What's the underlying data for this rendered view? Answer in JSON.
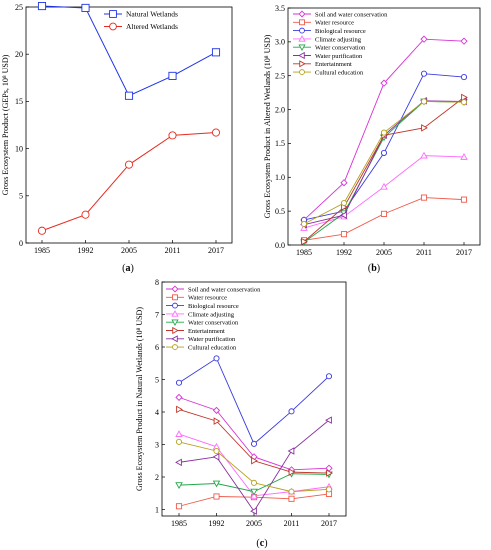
{
  "chart_data": [
    {
      "panel": "(a)",
      "type": "line",
      "x": [
        "1985",
        "1992",
        "2005",
        "2011",
        "2017"
      ],
      "ylabel": "Gross Ecosystem Product (GEPs, 10⁸ USD)",
      "ylim": [
        0,
        25
      ],
      "yticks": [
        0,
        5,
        10,
        15,
        20,
        25
      ],
      "legend_position": "top-right",
      "series": [
        {
          "name": "Natural Wetlands",
          "color": "#1f33e6",
          "marker": "square",
          "values": [
            25.1,
            24.9,
            15.6,
            17.7,
            20.2
          ]
        },
        {
          "name": "Altered Wetlands",
          "color": "#e62a1f",
          "marker": "circle",
          "values": [
            1.3,
            3.0,
            8.3,
            11.4,
            11.7
          ]
        }
      ]
    },
    {
      "panel": "(b)",
      "type": "line",
      "x": [
        "1985",
        "1992",
        "2005",
        "2011",
        "2017"
      ],
      "ylabel": "Gross Ecosystem Product  in  Altered Wetlands (10⁸ USD)",
      "ylim": [
        0,
        3.5
      ],
      "yticks": [
        0.0,
        0.5,
        1.0,
        1.5,
        2.0,
        2.5,
        3.0,
        3.5
      ],
      "legend_position": "top-left",
      "series": [
        {
          "name": "Soil and water  conservation",
          "color": "#d633d6",
          "marker": "diamond",
          "values": [
            0.37,
            0.92,
            2.39,
            3.04,
            3.01
          ]
        },
        {
          "name": "Water resource",
          "color": "#ee5a4a",
          "marker": "square",
          "values": [
            0.07,
            0.16,
            0.46,
            0.7,
            0.67
          ]
        },
        {
          "name": "Biological resource",
          "color": "#3a3ae0",
          "marker": "circle",
          "values": [
            0.37,
            0.5,
            1.36,
            2.53,
            2.48
          ]
        },
        {
          "name": "Climate adjusting",
          "color": "#ff6bff",
          "marker": "triangle-up",
          "values": [
            0.25,
            0.42,
            0.86,
            1.32,
            1.3
          ]
        },
        {
          "name": "Water conservation",
          "color": "#22a84a",
          "marker": "triangle-down",
          "values": [
            0.04,
            0.47,
            1.59,
            2.12,
            2.11
          ]
        },
        {
          "name": "Water purification",
          "color": "#8a2f9e",
          "marker": "triangle-left",
          "values": [
            0.3,
            0.44,
            1.62,
            2.13,
            2.12
          ]
        },
        {
          "name": "Entertainment",
          "color": "#c0342a",
          "marker": "triangle-right",
          "values": [
            0.05,
            0.56,
            1.62,
            1.73,
            2.18
          ]
        },
        {
          "name": "Cultural education",
          "color": "#b5a21e",
          "marker": "circle",
          "values": [
            0.31,
            0.62,
            1.66,
            2.12,
            2.11
          ]
        }
      ]
    },
    {
      "panel": "(c)",
      "type": "line",
      "x": [
        "1985",
        "1992",
        "2005",
        "2011",
        "2017"
      ],
      "ylabel": "Gross Ecosystem Product in Natural Wetlands (10⁸ USD)",
      "ylim": [
        0.8,
        8
      ],
      "yticks": [
        1,
        2,
        3,
        4,
        5,
        6,
        7,
        8
      ],
      "legend_position": "top-left",
      "series": [
        {
          "name": "Soil and water  conservation",
          "color": "#d633d6",
          "marker": "diamond",
          "values": [
            4.45,
            4.05,
            2.62,
            2.22,
            2.27
          ]
        },
        {
          "name": "Water resource",
          "color": "#ee5a4a",
          "marker": "square",
          "values": [
            1.1,
            1.4,
            1.38,
            1.33,
            1.48
          ]
        },
        {
          "name": "Biological resource",
          "color": "#3a3ae0",
          "marker": "circle",
          "values": [
            4.9,
            5.65,
            3.02,
            4.02,
            5.1
          ]
        },
        {
          "name": "Climate adjusting",
          "color": "#ff6bff",
          "marker": "triangle-up",
          "values": [
            3.32,
            2.93,
            1.42,
            1.55,
            1.7
          ]
        },
        {
          "name": "Water conservation",
          "color": "#22a84a",
          "marker": "triangle-down",
          "values": [
            1.75,
            1.8,
            1.55,
            2.1,
            2.08
          ]
        },
        {
          "name": "Entertainment",
          "color": "#c0342a",
          "marker": "triangle-right",
          "values": [
            4.08,
            3.72,
            2.5,
            2.15,
            2.12
          ]
        },
        {
          "name": "Water purification",
          "color": "#8a2f9e",
          "marker": "triangle-left",
          "values": [
            2.45,
            2.62,
            0.95,
            2.8,
            3.75
          ]
        },
        {
          "name": "Cultural education",
          "color": "#b5a21e",
          "marker": "circle",
          "values": [
            3.08,
            2.8,
            1.82,
            1.55,
            1.62
          ]
        }
      ]
    }
  ]
}
